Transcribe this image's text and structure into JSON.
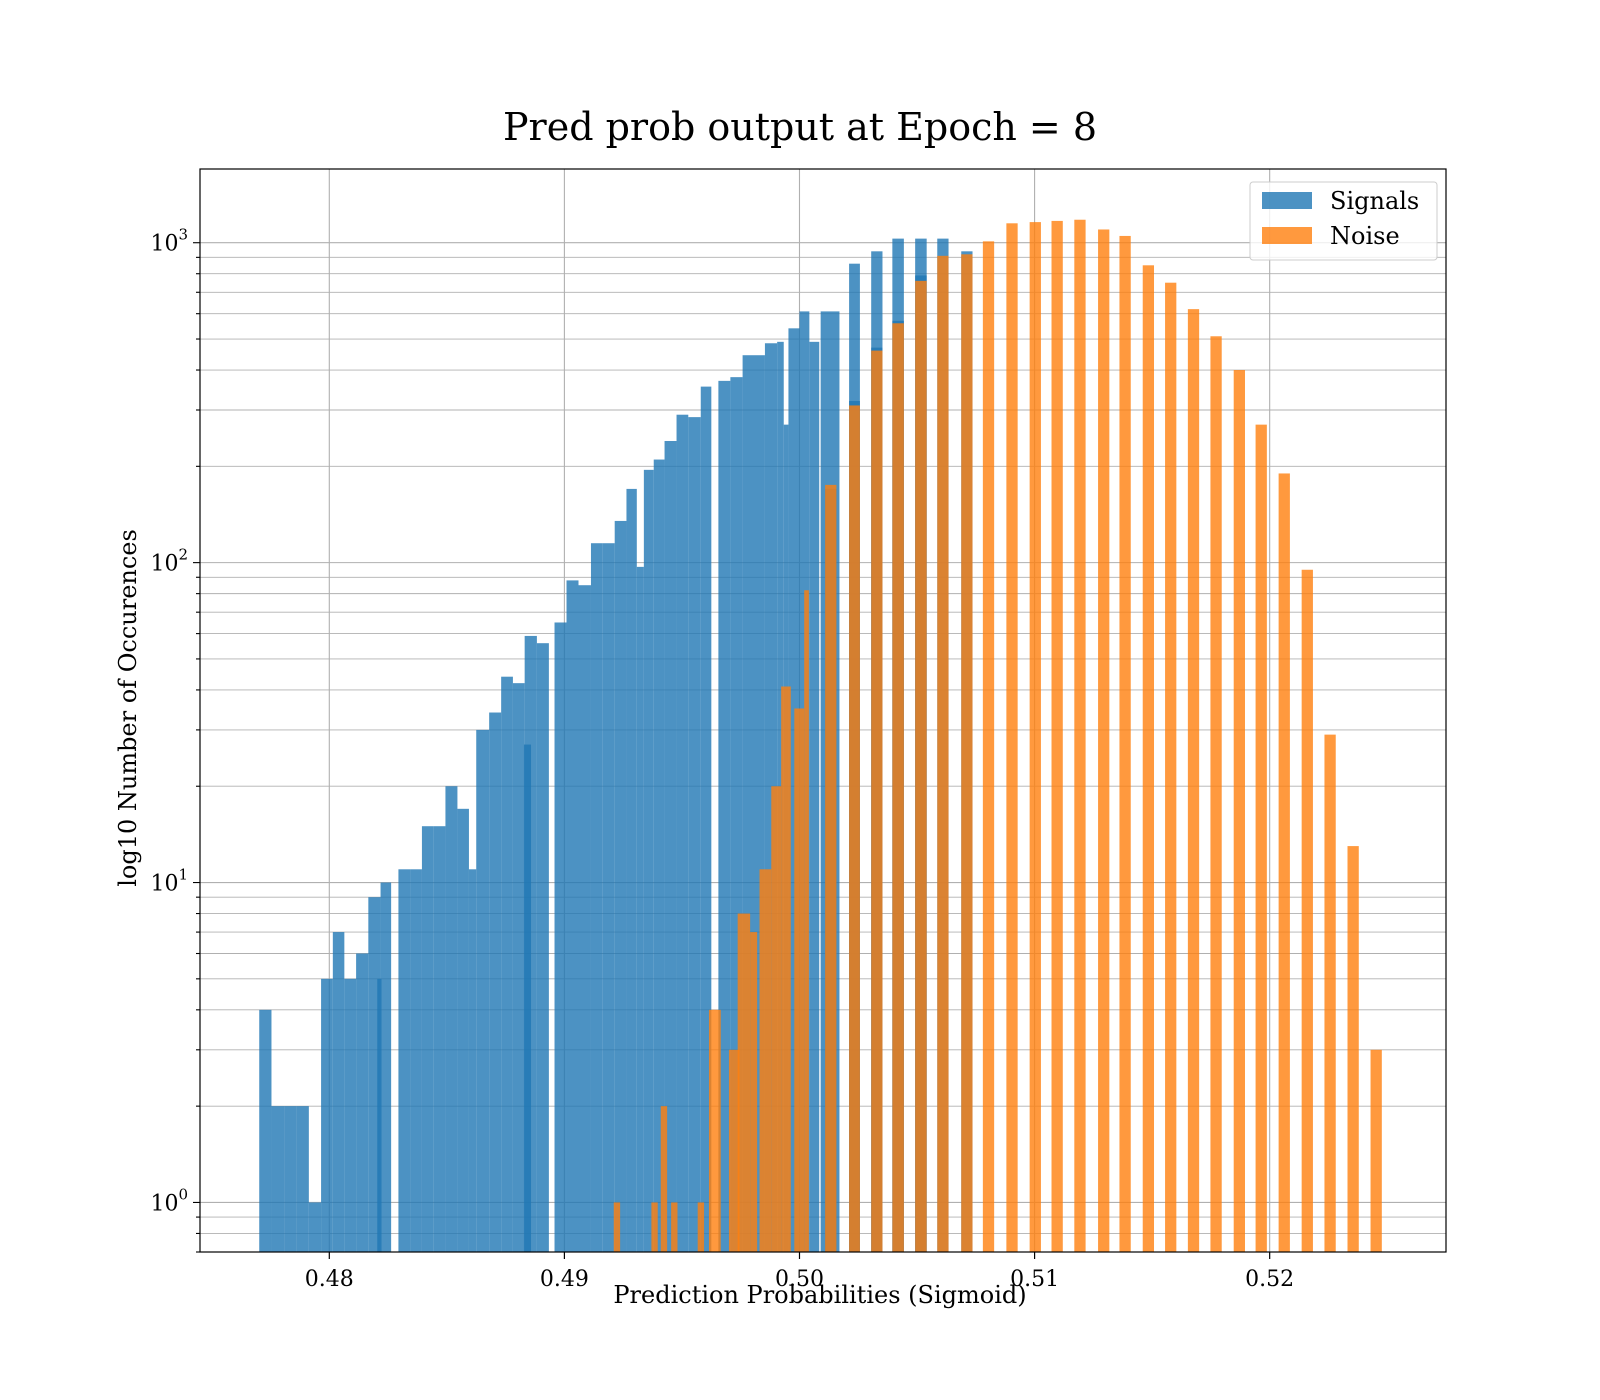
{
  "chart_data": {
    "type": "bar",
    "title": "Pred prob output at Epoch = 8",
    "xlabel": "Prediction Probabilities (Sigmoid)",
    "ylabel": "log10 Number of Occurences",
    "y_scale": "log",
    "xlim": [
      0.4745,
      0.5275
    ],
    "ylim": [
      0.7,
      1700
    ],
    "xticks": [
      {
        "value": 0.48,
        "label": "0.48"
      },
      {
        "value": 0.49,
        "label": "0.49"
      },
      {
        "value": 0.5,
        "label": "0.50"
      },
      {
        "value": 0.51,
        "label": "0.51"
      },
      {
        "value": 0.52,
        "label": "0.52"
      }
    ],
    "yticks": [
      {
        "value": 1,
        "base": "10",
        "exp": "0"
      },
      {
        "value": 10,
        "base": "10",
        "exp": "1"
      },
      {
        "value": 100,
        "base": "10",
        "exp": "2"
      },
      {
        "value": 1000,
        "base": "10",
        "exp": "3"
      }
    ],
    "grid": true,
    "legend_position": "top-right",
    "series": [
      {
        "name": "Signals",
        "color": "#1f77b4",
        "opacity": 0.8,
        "bins": [
          [
            0.47702,
            0.47754,
            4
          ],
          [
            0.47754,
            0.47809,
            2
          ],
          [
            0.47809,
            0.4786,
            2
          ],
          [
            0.4786,
            0.47913,
            2
          ],
          [
            0.47913,
            0.47965,
            1
          ],
          [
            0.47965,
            0.48015,
            5
          ],
          [
            0.48015,
            0.48064,
            7
          ],
          [
            0.48064,
            0.48114,
            5
          ],
          [
            0.48114,
            0.48166,
            6
          ],
          [
            0.48166,
            0.48218,
            9
          ],
          [
            0.48218,
            0.48263,
            10
          ],
          [
            0.48204,
            0.48222,
            5
          ],
          [
            0.48294,
            0.48345,
            11
          ],
          [
            0.48345,
            0.48394,
            11
          ],
          [
            0.48394,
            0.48444,
            15
          ],
          [
            0.48444,
            0.48494,
            15
          ],
          [
            0.48494,
            0.48545,
            20
          ],
          [
            0.48545,
            0.48594,
            17
          ],
          [
            0.48594,
            0.48625,
            11
          ],
          [
            0.48625,
            0.4868,
            30
          ],
          [
            0.4868,
            0.48731,
            34
          ],
          [
            0.48731,
            0.48781,
            44
          ],
          [
            0.48781,
            0.48831,
            42
          ],
          [
            0.48831,
            0.48883,
            59
          ],
          [
            0.48883,
            0.48934,
            56
          ],
          [
            0.48828,
            0.48858,
            27
          ],
          [
            0.48958,
            0.49009,
            65
          ],
          [
            0.49009,
            0.4906,
            88
          ],
          [
            0.4906,
            0.49113,
            85
          ],
          [
            0.49113,
            0.49163,
            115
          ],
          [
            0.49163,
            0.49214,
            115
          ],
          [
            0.49214,
            0.49264,
            135
          ],
          [
            0.49264,
            0.49308,
            170
          ],
          [
            0.49308,
            0.49338,
            97
          ],
          [
            0.49338,
            0.4938,
            195
          ],
          [
            0.4938,
            0.49426,
            210
          ],
          [
            0.49426,
            0.49477,
            240
          ],
          [
            0.49477,
            0.49527,
            290
          ],
          [
            0.49527,
            0.4958,
            285
          ],
          [
            0.4958,
            0.49625,
            355
          ],
          [
            0.49655,
            0.49706,
            370
          ],
          [
            0.49706,
            0.49758,
            380
          ],
          [
            0.49758,
            0.49853,
            445
          ],
          [
            0.49853,
            0.49905,
            485
          ],
          [
            0.49905,
            0.49933,
            490
          ],
          [
            0.49933,
            0.49953,
            270
          ],
          [
            0.49953,
            0.5,
            540
          ],
          [
            0.5,
            0.50042,
            610
          ],
          [
            0.50042,
            0.50084,
            490
          ],
          [
            0.5009,
            0.5017,
            610
          ],
          [
            0.50109,
            0.50157,
            170
          ],
          [
            0.50211,
            0.50257,
            860
          ],
          [
            0.50211,
            0.50257,
            320
          ],
          [
            0.50305,
            0.50353,
            940
          ],
          [
            0.50305,
            0.50353,
            470
          ],
          [
            0.50395,
            0.50444,
            1030
          ],
          [
            0.50395,
            0.50444,
            570
          ],
          [
            0.50492,
            0.50541,
            1030
          ],
          [
            0.50492,
            0.50541,
            790
          ],
          [
            0.50586,
            0.50634,
            1030
          ],
          [
            0.50688,
            0.50736,
            940
          ]
        ]
      },
      {
        "name": "Noise",
        "color": "#ff7f0e",
        "opacity": 0.8,
        "bins": [
          [
            0.4921,
            0.49237,
            1
          ],
          [
            0.4937,
            0.49397,
            1
          ],
          [
            0.4941,
            0.49437,
            2
          ],
          [
            0.49454,
            0.49481,
            1
          ],
          [
            0.49567,
            0.49594,
            1
          ],
          [
            0.49615,
            0.49665,
            4
          ],
          [
            0.497,
            0.49745,
            3
          ],
          [
            0.49737,
            0.4979,
            8
          ],
          [
            0.4979,
            0.4982,
            7
          ],
          [
            0.4983,
            0.4988,
            11
          ],
          [
            0.4988,
            0.49922,
            20
          ],
          [
            0.49922,
            0.49963,
            41
          ],
          [
            0.49978,
            0.5002,
            35
          ],
          [
            0.5002,
            0.5004,
            82
          ],
          [
            0.50109,
            0.50157,
            175
          ],
          [
            0.50211,
            0.50257,
            310
          ],
          [
            0.50305,
            0.50353,
            460
          ],
          [
            0.50395,
            0.50444,
            560
          ],
          [
            0.50492,
            0.50541,
            760
          ],
          [
            0.50586,
            0.50634,
            910
          ],
          [
            0.50688,
            0.50736,
            920
          ],
          [
            0.5078,
            0.50828,
            1010
          ],
          [
            0.5088,
            0.50928,
            1150
          ],
          [
            0.50979,
            0.51027,
            1160
          ],
          [
            0.51072,
            0.5112,
            1170
          ],
          [
            0.51169,
            0.51217,
            1180
          ],
          [
            0.5127,
            0.51318,
            1100
          ],
          [
            0.51361,
            0.51409,
            1050
          ],
          [
            0.5146,
            0.51508,
            850
          ],
          [
            0.51555,
            0.51603,
            750
          ],
          [
            0.51652,
            0.517,
            620
          ],
          [
            0.51748,
            0.51796,
            510
          ],
          [
            0.51847,
            0.51895,
            400
          ],
          [
            0.5194,
            0.51988,
            270
          ],
          [
            0.52038,
            0.52086,
            190
          ],
          [
            0.52136,
            0.52184,
            95
          ],
          [
            0.52233,
            0.52281,
            29
          ],
          [
            0.52331,
            0.52379,
            13
          ],
          [
            0.52429,
            0.52477,
            3
          ]
        ]
      }
    ]
  }
}
